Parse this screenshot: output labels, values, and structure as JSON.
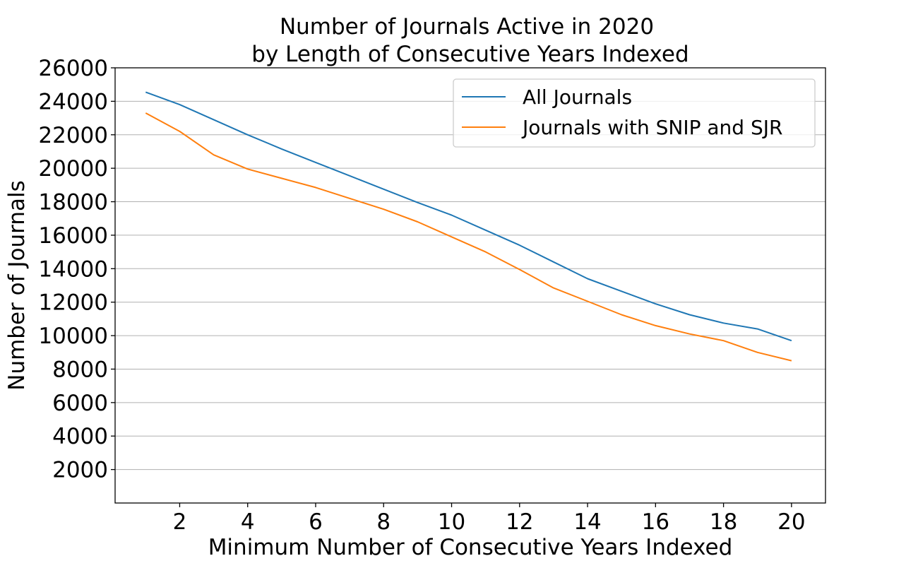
{
  "chart_data": {
    "type": "line",
    "title": [
      "Number of Journals Active in 2020",
      "by Length of Consecutive Years Indexed"
    ],
    "xlabel": "Minimum Number of Consecutive Years Indexed",
    "ylabel": "Number of Journals",
    "x": [
      1,
      2,
      3,
      4,
      5,
      6,
      7,
      8,
      9,
      10,
      11,
      12,
      13,
      14,
      15,
      16,
      17,
      18,
      19,
      20
    ],
    "xlim": [
      0.1,
      21.0
    ],
    "ylim": [
      0,
      26000
    ],
    "xticks": [
      2,
      4,
      6,
      8,
      10,
      12,
      14,
      16,
      18,
      20
    ],
    "yticks": [
      2000,
      4000,
      6000,
      8000,
      10000,
      12000,
      14000,
      16000,
      18000,
      20000,
      22000,
      24000,
      26000
    ],
    "grid": "horizontal",
    "legend_position": "top-right",
    "series": [
      {
        "name": "All Journals",
        "color": "#1f77b4",
        "values": [
          24550,
          23800,
          22900,
          22000,
          21150,
          20350,
          19550,
          18750,
          17950,
          17200,
          16300,
          15400,
          14400,
          13400,
          12650,
          11900,
          11250,
          10750,
          10400,
          9700
        ]
      },
      {
        "name": "Journals with SNIP and SJR",
        "color": "#ff7f0e",
        "values": [
          23300,
          22200,
          20800,
          19950,
          19400,
          18850,
          18200,
          17550,
          16800,
          15900,
          15000,
          13950,
          12850,
          12050,
          11250,
          10600,
          10100,
          9700,
          9000,
          8500
        ]
      }
    ]
  }
}
